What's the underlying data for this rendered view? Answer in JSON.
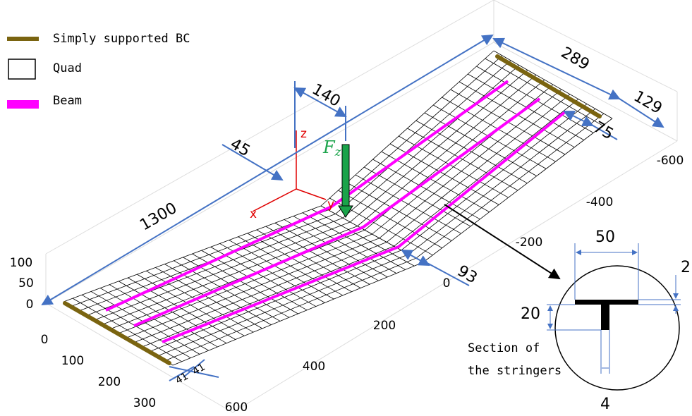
{
  "legend": [
    {
      "label": "Simply supported BC"
    },
    {
      "label": "Quad"
    },
    {
      "label": "Beam"
    }
  ],
  "dimensions": {
    "length": "1300",
    "load_offset_x": "140",
    "load_offset_y": "45",
    "far_width": "289",
    "far_offset": "129",
    "stringer_gap_far": "75",
    "stringer_gap_kink": "93",
    "near_gaps": [
      "41",
      "41"
    ]
  },
  "load": {
    "symbol": "F",
    "subscript": "z"
  },
  "triad": {
    "z": "z",
    "x": "x",
    "y": "y"
  },
  "axes": {
    "z_ticks": [
      "100",
      "50",
      "0"
    ],
    "y_ticks": [
      "0",
      "100",
      "200",
      "300"
    ],
    "x_ticks": [
      "200",
      "400",
      "600"
    ],
    "side_ticks": [
      "-600",
      "-400",
      "-200",
      "0"
    ]
  },
  "section": {
    "caption": [
      "Section of",
      "the stringers"
    ],
    "width": "50",
    "thickness": "2",
    "height": "20",
    "web": "4"
  }
}
